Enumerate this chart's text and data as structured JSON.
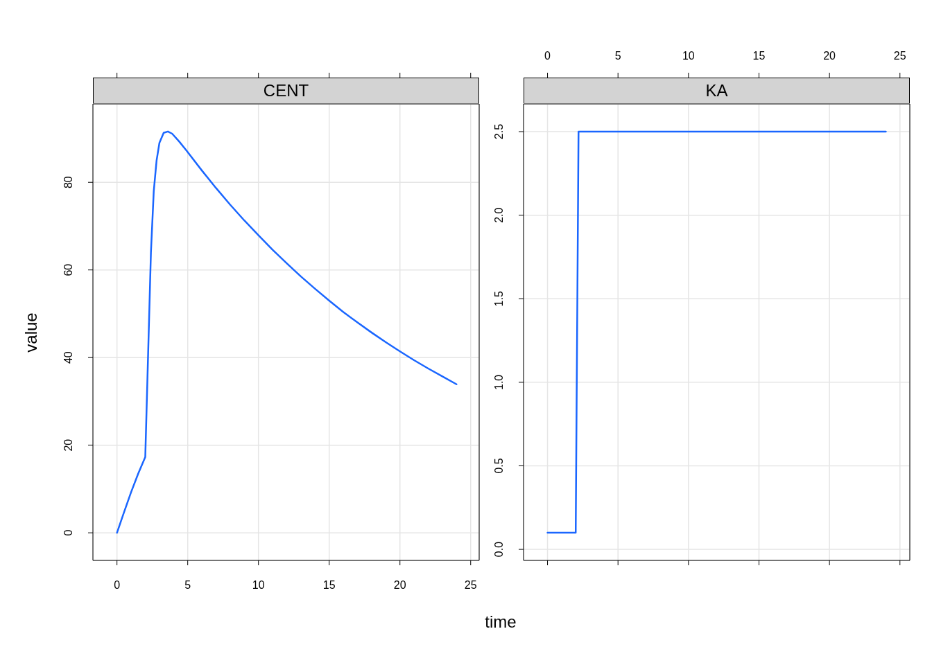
{
  "chart_data": [
    {
      "type": "line",
      "title": "CENT",
      "xlabel": "time",
      "ylabel": "value",
      "xlim": [
        -1.7,
        25.6
      ],
      "xticks": [
        0,
        5,
        10,
        15,
        20,
        25
      ],
      "ylim": [
        -6.3,
        97.9
      ],
      "yticks": [
        0,
        20,
        40,
        60,
        80
      ],
      "grid": true,
      "x": [
        0,
        0.5,
        1,
        1.5,
        2,
        2.4,
        2.6,
        2.8,
        3,
        3.3,
        3.6,
        3.9,
        4.4,
        4.9,
        6,
        7,
        8,
        9,
        10,
        11,
        12,
        13,
        14,
        15,
        16,
        17,
        18,
        19,
        20,
        21,
        22,
        23,
        24
      ],
      "series": [
        {
          "color": "#1a66ff",
          "values": [
            0,
            4.7,
            9.3,
            13.5,
            17.3,
            64,
            78,
            85,
            89,
            91.3,
            91.6,
            91.1,
            89.3,
            87.3,
            82.7,
            78.7,
            74.9,
            71.3,
            67.9,
            64.6,
            61.5,
            58.5,
            55.7,
            53,
            50.4,
            48,
            45.7,
            43.5,
            41.4,
            39.4,
            37.5,
            35.7,
            33.9
          ]
        }
      ]
    },
    {
      "type": "line",
      "title": "KA",
      "xlim": [
        -1.7,
        25.7
      ],
      "xticks": [
        0,
        5,
        10,
        15,
        20,
        25
      ],
      "ylim": [
        -0.066,
        2.666
      ],
      "yticks": [
        {
          "value": 0,
          "label": "0.0"
        },
        {
          "value": 0.5,
          "label": "0.5"
        },
        {
          "value": 1,
          "label": "1.0"
        },
        {
          "value": 1.5,
          "label": "1.5"
        },
        {
          "value": 2,
          "label": "2.0"
        },
        {
          "value": 2.5,
          "label": "2.5"
        }
      ],
      "grid": true,
      "x": [
        0,
        2,
        2.2,
        24
      ],
      "series": [
        {
          "color": "#1a66ff",
          "values": [
            0.1,
            0.1,
            2.5,
            2.5
          ]
        }
      ]
    }
  ]
}
